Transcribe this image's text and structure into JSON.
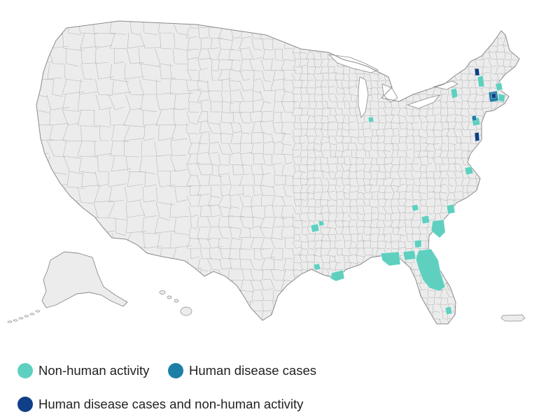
{
  "colors": {
    "land": "#ececec",
    "border": "#8a8a8a",
    "grid": "#b4b4b4",
    "non_human": "#5fd0c0",
    "human": "#1e7fa6",
    "both": "#0f3f86"
  },
  "legend": [
    {
      "label": "Non-human activity",
      "color_key": "non_human"
    },
    {
      "label": "Human disease cases",
      "color_key": "human"
    },
    {
      "label": "Human disease cases and non-human activity",
      "color_key": "both"
    }
  ]
}
